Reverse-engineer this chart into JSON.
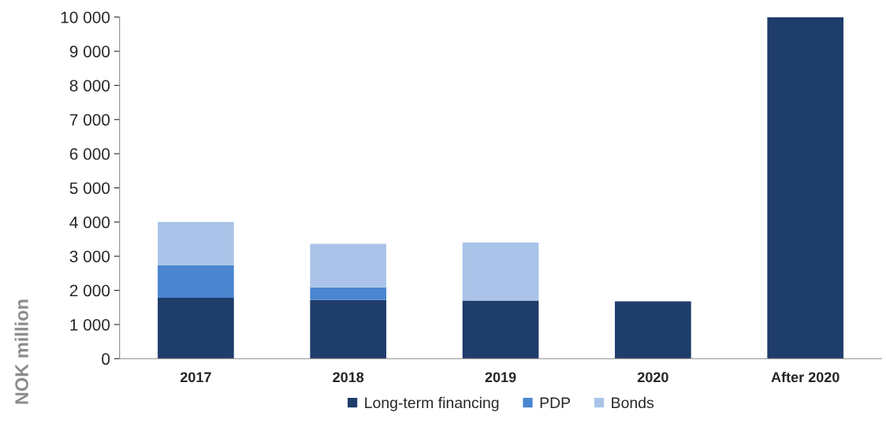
{
  "chart_data": {
    "type": "bar",
    "stacked": true,
    "ylabel": "NOK million",
    "categories": [
      "2017",
      "2018",
      "2019",
      "2020",
      "After 2020"
    ],
    "series": [
      {
        "name": "Long-term financing",
        "color": "#1f3d6b",
        "values": [
          1780,
          1720,
          1700,
          1680,
          10000
        ]
      },
      {
        "name": "PDP",
        "color": "#4a86d0",
        "values": [
          960,
          370,
          0,
          0,
          0
        ]
      },
      {
        "name": "Bonds",
        "color": "#a9c4e8",
        "values": [
          1260,
          1270,
          1700,
          0,
          0
        ]
      }
    ],
    "ylim": [
      0,
      10000
    ],
    "yticks": [
      {
        "value": 0,
        "label": "0"
      },
      {
        "value": 1000,
        "label": "1 000"
      },
      {
        "value": 2000,
        "label": "2 000"
      },
      {
        "value": 3000,
        "label": "3 000"
      },
      {
        "value": 4000,
        "label": "4 000"
      },
      {
        "value": 5000,
        "label": "5 000"
      },
      {
        "value": 6000,
        "label": "6 000"
      },
      {
        "value": 7000,
        "label": "7 000"
      },
      {
        "value": 8000,
        "label": "8 000"
      },
      {
        "value": 9000,
        "label": "9 000"
      },
      {
        "value": 10000,
        "label": "10 000"
      }
    ],
    "grid": false,
    "legend": "bottom"
  }
}
